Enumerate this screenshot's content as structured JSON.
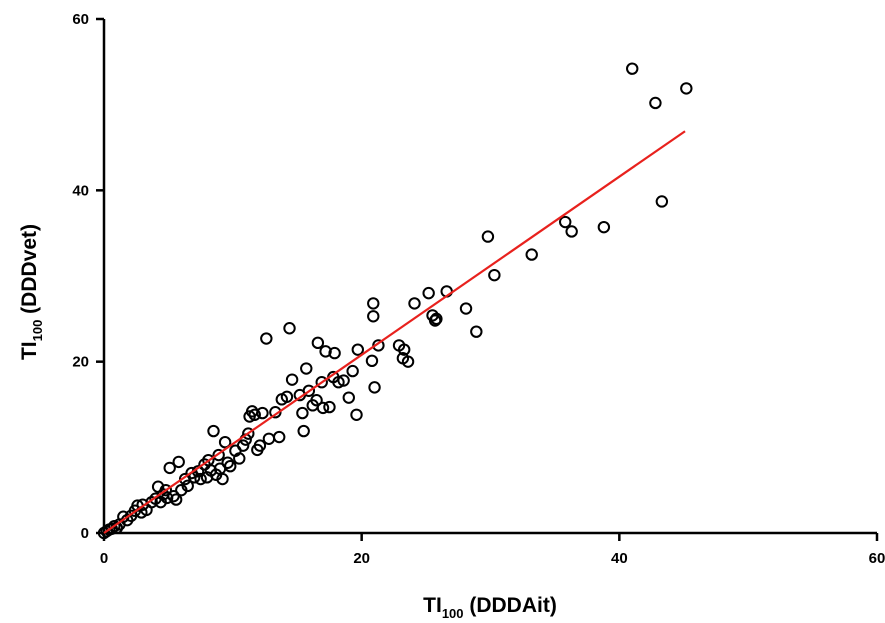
{
  "colors": {
    "background": "#ffffff",
    "axis": "#000000",
    "points": "#000000",
    "regression_line": "#e8211d"
  },
  "chart_data": {
    "type": "scatter",
    "title": "",
    "xlabel": {
      "main": "TI",
      "subscript": "100",
      "suffix": "(DDDAit)"
    },
    "ylabel": {
      "main": "TI",
      "subscript": "100",
      "suffix": "(DDDvet)"
    },
    "xlim": [
      0,
      60
    ],
    "ylim": [
      0,
      60
    ],
    "x_ticks": [
      0,
      20,
      40,
      60
    ],
    "y_ticks": [
      0,
      20,
      40,
      60
    ],
    "x_tick_labels": [
      "0",
      "20",
      "40",
      "60"
    ],
    "y_tick_labels": [
      "0",
      "20",
      "40",
      "60"
    ],
    "grid": false,
    "marker": "open-circle",
    "regression_line": {
      "x": [
        0,
        45.1
      ],
      "y": [
        0,
        46.9
      ]
    },
    "series": [
      {
        "points": [
          [
            0.0,
            0.0
          ],
          [
            0.2,
            0.2
          ],
          [
            0.4,
            0.4
          ],
          [
            0.6,
            0.5
          ],
          [
            0.8,
            0.8
          ],
          [
            1.0,
            0.6
          ],
          [
            1.2,
            1.0
          ],
          [
            1.5,
            1.9
          ],
          [
            1.8,
            1.5
          ],
          [
            2.1,
            2.0
          ],
          [
            2.4,
            2.6
          ],
          [
            2.6,
            3.2
          ],
          [
            2.9,
            2.4
          ],
          [
            3.0,
            3.3
          ],
          [
            3.3,
            2.7
          ],
          [
            3.7,
            3.6
          ],
          [
            4.0,
            4.0
          ],
          [
            4.2,
            5.4
          ],
          [
            4.4,
            3.6
          ],
          [
            4.6,
            4.5
          ],
          [
            4.8,
            5.0
          ],
          [
            4.9,
            4.1
          ],
          [
            5.1,
            7.6
          ],
          [
            5.4,
            4.3
          ],
          [
            5.6,
            3.9
          ],
          [
            5.8,
            8.3
          ],
          [
            6.0,
            5.0
          ],
          [
            6.3,
            6.3
          ],
          [
            6.5,
            5.5
          ],
          [
            6.8,
            7.0
          ],
          [
            7.0,
            6.5
          ],
          [
            7.3,
            7.2
          ],
          [
            7.5,
            6.3
          ],
          [
            7.8,
            8.0
          ],
          [
            8.0,
            6.5
          ],
          [
            8.1,
            8.5
          ],
          [
            8.3,
            7.3
          ],
          [
            8.5,
            11.9
          ],
          [
            8.7,
            6.8
          ],
          [
            8.9,
            9.1
          ],
          [
            9.0,
            7.5
          ],
          [
            9.2,
            6.3
          ],
          [
            9.4,
            10.6
          ],
          [
            9.6,
            8.2
          ],
          [
            9.8,
            7.8
          ],
          [
            10.2,
            9.6
          ],
          [
            10.5,
            8.7
          ],
          [
            10.8,
            10.2
          ],
          [
            11.0,
            10.9
          ],
          [
            11.2,
            11.6
          ],
          [
            11.3,
            13.6
          ],
          [
            11.5,
            14.2
          ],
          [
            11.7,
            13.8
          ],
          [
            11.9,
            9.7
          ],
          [
            12.1,
            10.2
          ],
          [
            12.3,
            14.0
          ],
          [
            12.6,
            22.7
          ],
          [
            12.8,
            11.0
          ],
          [
            13.3,
            14.1
          ],
          [
            13.6,
            11.2
          ],
          [
            13.8,
            15.6
          ],
          [
            14.2,
            15.9
          ],
          [
            14.4,
            23.9
          ],
          [
            14.6,
            17.9
          ],
          [
            15.2,
            16.1
          ],
          [
            15.4,
            14.0
          ],
          [
            15.5,
            11.9
          ],
          [
            15.7,
            19.2
          ],
          [
            15.9,
            16.6
          ],
          [
            16.2,
            14.9
          ],
          [
            16.5,
            15.5
          ],
          [
            16.6,
            22.2
          ],
          [
            16.9,
            17.6
          ],
          [
            17.0,
            14.6
          ],
          [
            17.2,
            21.2
          ],
          [
            17.5,
            14.7
          ],
          [
            17.8,
            18.2
          ],
          [
            17.9,
            21.0
          ],
          [
            18.2,
            17.6
          ],
          [
            18.6,
            17.8
          ],
          [
            19.0,
            15.8
          ],
          [
            19.3,
            18.9
          ],
          [
            19.6,
            13.8
          ],
          [
            19.7,
            21.4
          ],
          [
            20.8,
            20.1
          ],
          [
            20.9,
            26.8
          ],
          [
            20.9,
            25.3
          ],
          [
            21.0,
            17.0
          ],
          [
            21.3,
            21.9
          ],
          [
            22.9,
            21.9
          ],
          [
            23.2,
            20.4
          ],
          [
            23.3,
            21.4
          ],
          [
            23.6,
            20.0
          ],
          [
            24.1,
            26.8
          ],
          [
            25.2,
            28.0
          ],
          [
            25.5,
            25.4
          ],
          [
            25.7,
            24.8
          ],
          [
            25.8,
            25.0
          ],
          [
            26.6,
            28.2
          ],
          [
            28.1,
            26.2
          ],
          [
            28.9,
            23.5
          ],
          [
            29.8,
            34.6
          ],
          [
            30.3,
            30.1
          ],
          [
            33.2,
            32.5
          ],
          [
            35.8,
            36.3
          ],
          [
            36.3,
            35.2
          ],
          [
            38.8,
            35.7
          ],
          [
            41.0,
            54.2
          ],
          [
            42.8,
            50.2
          ],
          [
            43.3,
            38.7
          ],
          [
            45.2,
            51.9
          ]
        ]
      }
    ]
  }
}
